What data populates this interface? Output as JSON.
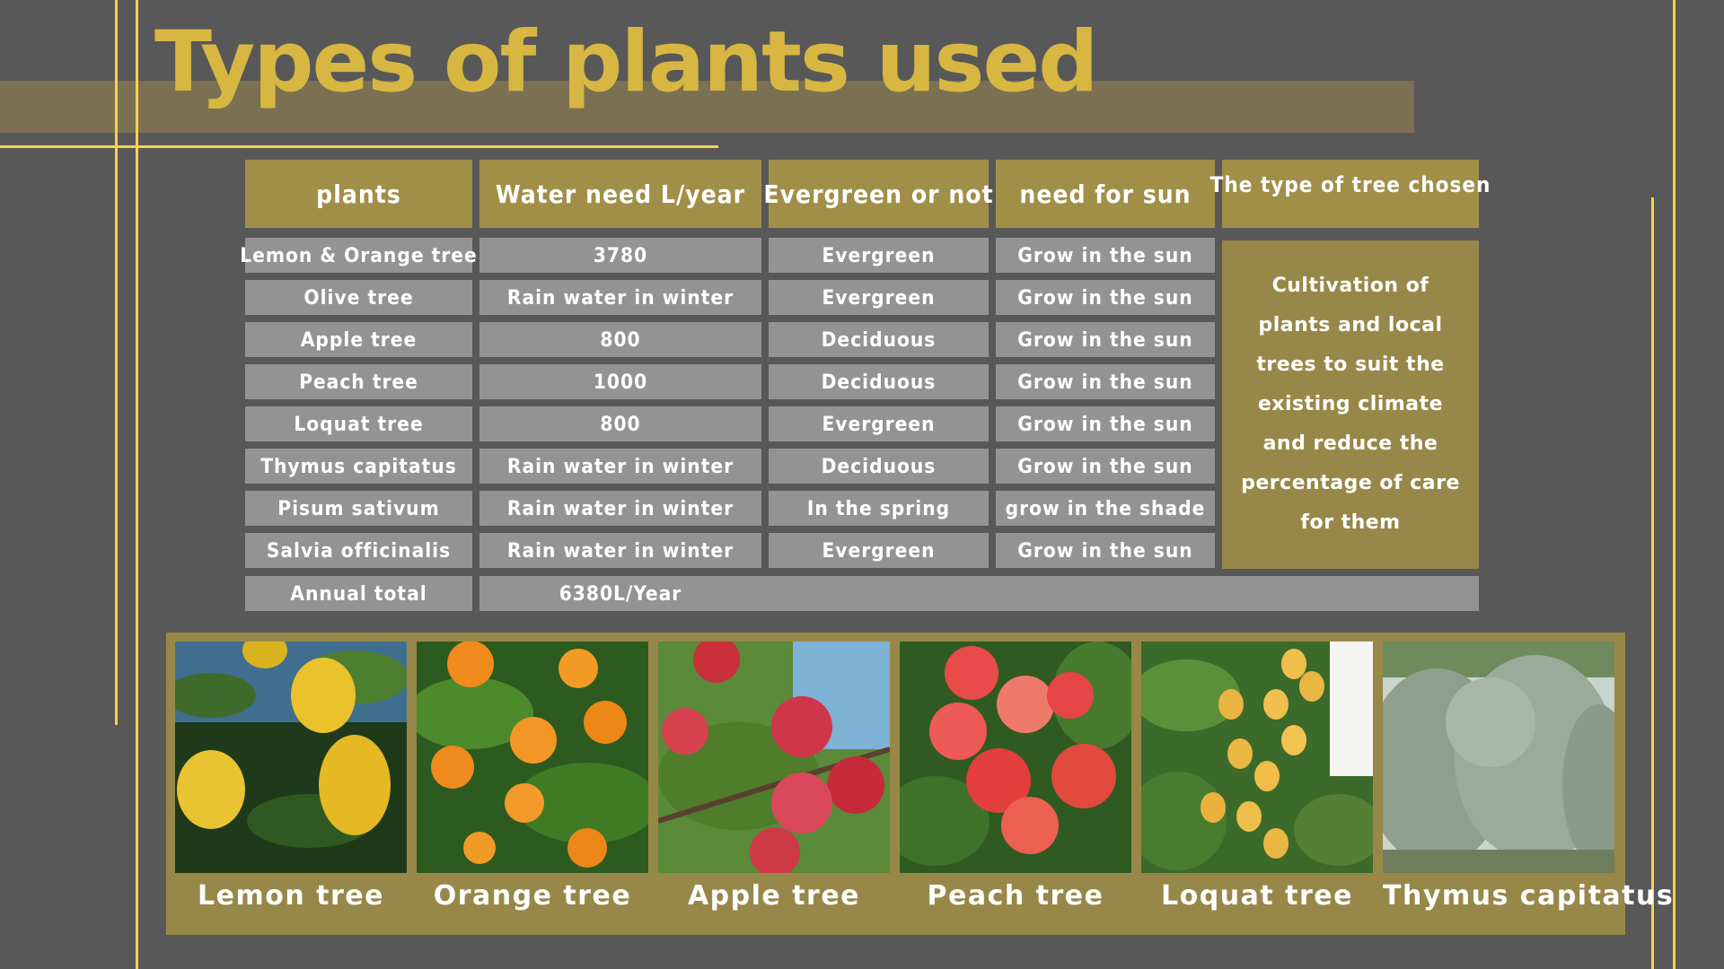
{
  "slide": {
    "title": "Types of plants used",
    "accent_color": "#d7b741",
    "header_color": "#a18f48",
    "cell_color": "#939393",
    "background_color": "#585858"
  },
  "table": {
    "headers": [
      "plants",
      "Water need L/year",
      "Evergreen or not",
      "need for sun",
      "The type of tree chosen"
    ],
    "rows": [
      {
        "plant": "Lemon  & Orange tree",
        "water": "3780",
        "evergreen": "Evergreen",
        "sun": "Grow in the sun"
      },
      {
        "plant": "Olive tree",
        "water": "Rain water in winter",
        "evergreen": "Evergreen",
        "sun": "Grow in the sun"
      },
      {
        "plant": "Apple tree",
        "water": "800",
        "evergreen": "Deciduous",
        "sun": "Grow in the sun"
      },
      {
        "plant": "Peach tree",
        "water": "1000",
        "evergreen": "Deciduous",
        "sun": "Grow in the sun"
      },
      {
        "plant": "Loquat tree",
        "water": "800",
        "evergreen": "Evergreen",
        "sun": "Grow in the sun"
      },
      {
        "plant": "Thymus capitatus",
        "water": "Rain water in winter",
        "evergreen": "Deciduous",
        "sun": "Grow in the sun"
      },
      {
        "plant": "Pisum sativum",
        "water": "Rain water in winter",
        "evergreen": "In the spring",
        "sun": "grow in the shade"
      },
      {
        "plant": "Salvia officinalis",
        "water": "Rain water in winter",
        "evergreen": "Evergreen",
        "sun": "Grow in the sun"
      }
    ],
    "total_label": "Annual total",
    "total_value": "6380L/Year",
    "chosen_note": "Cultivation of plants and local trees to suit the existing climate and reduce the percentage of care for them"
  },
  "photos": [
    {
      "caption": "Lemon tree",
      "image": "lemon-tree-photo"
    },
    {
      "caption": "Orange tree",
      "image": "orange-tree-photo"
    },
    {
      "caption": "Apple tree",
      "image": "apple-tree-photo"
    },
    {
      "caption": "Peach tree",
      "image": "peach-tree-photo"
    },
    {
      "caption": "Loquat tree",
      "image": "loquat-tree-photo"
    },
    {
      "caption": "Thymus capitatus",
      "image": "thymus-capitatus-photo"
    }
  ]
}
